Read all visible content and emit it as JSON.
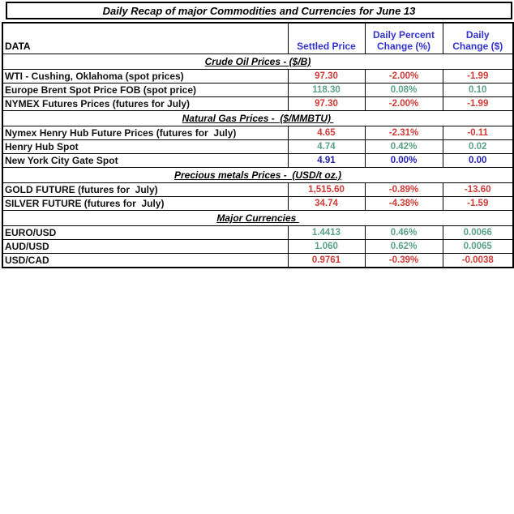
{
  "title": "Daily Recap of major Commodities and Currencies for June 13",
  "columns": {
    "data": "DATA",
    "settled": "Settled Price",
    "pct_line1": "Daily Percent",
    "pct_line2": "Change (%)",
    "chg_line1": "Daily",
    "chg_line2": "Change ($)"
  },
  "colors": {
    "up": "#5ba186",
    "down": "#ce3b38",
    "neutral": "#2222b2",
    "header_blue": "#3333cc",
    "border": "#000000",
    "title_black": "#000000"
  },
  "sections": [
    {
      "header": "Crude Oil Prices - ($/B)",
      "rows": [
        {
          "label": "WTI - Cushing, Oklahoma (spot prices)",
          "settled": "97.30",
          "pct": "-2.00%",
          "chg": "-1.99",
          "trend": "down"
        },
        {
          "label": "Europe Brent Spot Price FOB (spot price)",
          "settled": "118.30",
          "pct": "0.08%",
          "chg": "0.10",
          "trend": "up"
        },
        {
          "label": "NYMEX Futures Prices (futures for July)",
          "settled": "97.30",
          "pct": "-2.00%",
          "chg": "-1.99",
          "trend": "down"
        }
      ]
    },
    {
      "header": "Natural Gas Prices -  ($/MMBTU) ",
      "rows": [
        {
          "label": "Nymex Henry Hub Future Prices (futures for  July)",
          "settled": "4.65",
          "pct": "-2.31%",
          "chg": "-0.11",
          "trend": "down"
        },
        {
          "label": "Henry Hub Spot",
          "settled": "4.74",
          "pct": "0.42%",
          "chg": "0.02",
          "trend": "up"
        },
        {
          "label": "New York City Gate Spot",
          "settled": "4.91",
          "pct": "0.00%",
          "chg": "0.00",
          "trend": "neutral"
        }
      ]
    },
    {
      "header": "Precious metals Prices -  (USD/t oz.)",
      "rows": [
        {
          "label": "GOLD FUTURE (futures for  July)",
          "settled": "1,515.60",
          "pct": "-0.89%",
          "chg": "-13.60",
          "trend": "down"
        },
        {
          "label": "SILVER FUTURE (futures for  July)",
          "settled": "34.74",
          "pct": "-4.38%",
          "chg": "-1.59",
          "trend": "down"
        }
      ]
    },
    {
      "header": "Major Currencies ",
      "rows": [
        {
          "label": "EURO/USD",
          "settled": "1.4413",
          "pct": "0.46%",
          "chg": "0.0066",
          "trend": "up"
        },
        {
          "label": "AUD/USD",
          "settled": "1.060",
          "pct": "0.62%",
          "chg": "0.0065",
          "trend": "up"
        },
        {
          "label": "USD/CAD",
          "settled": "0.9761",
          "pct": "-0.39%",
          "chg": "-0.0038",
          "trend": "down"
        }
      ]
    }
  ]
}
